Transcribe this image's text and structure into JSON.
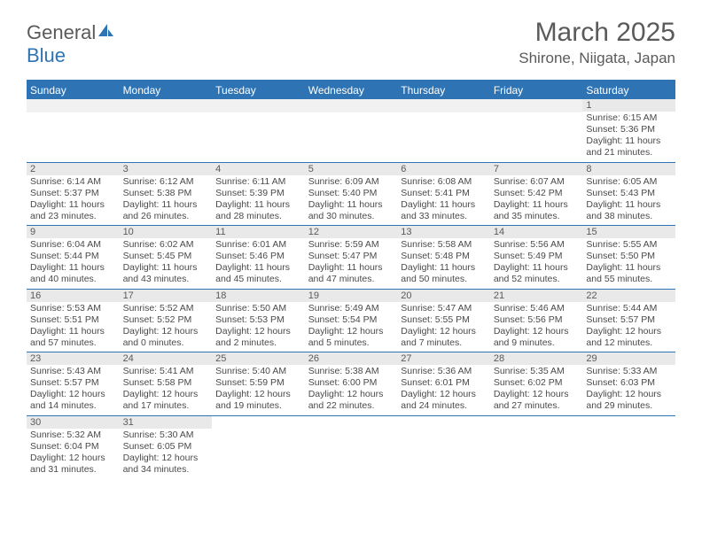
{
  "logo": {
    "general": "General",
    "blue": "Blue"
  },
  "title": "March 2025",
  "location": "Shirone, Niigata, Japan",
  "dayNames": [
    "Sunday",
    "Monday",
    "Tuesday",
    "Wednesday",
    "Thursday",
    "Friday",
    "Saturday"
  ],
  "colors": {
    "accent": "#2e74b5",
    "headerText": "#ffffff",
    "dayNumBg": "#e9e9e9",
    "textGray": "#5a5a5a",
    "bodyText": "#4a4a4a",
    "emptyBg": "#f1f1f1"
  },
  "weeks": [
    [
      {
        "empty": true
      },
      {
        "empty": true
      },
      {
        "empty": true
      },
      {
        "empty": true
      },
      {
        "empty": true
      },
      {
        "empty": true
      },
      {
        "num": "1",
        "sunrise": "Sunrise: 6:15 AM",
        "sunset": "Sunset: 5:36 PM",
        "daylight": "Daylight: 11 hours and 21 minutes."
      }
    ],
    [
      {
        "num": "2",
        "sunrise": "Sunrise: 6:14 AM",
        "sunset": "Sunset: 5:37 PM",
        "daylight": "Daylight: 11 hours and 23 minutes."
      },
      {
        "num": "3",
        "sunrise": "Sunrise: 6:12 AM",
        "sunset": "Sunset: 5:38 PM",
        "daylight": "Daylight: 11 hours and 26 minutes."
      },
      {
        "num": "4",
        "sunrise": "Sunrise: 6:11 AM",
        "sunset": "Sunset: 5:39 PM",
        "daylight": "Daylight: 11 hours and 28 minutes."
      },
      {
        "num": "5",
        "sunrise": "Sunrise: 6:09 AM",
        "sunset": "Sunset: 5:40 PM",
        "daylight": "Daylight: 11 hours and 30 minutes."
      },
      {
        "num": "6",
        "sunrise": "Sunrise: 6:08 AM",
        "sunset": "Sunset: 5:41 PM",
        "daylight": "Daylight: 11 hours and 33 minutes."
      },
      {
        "num": "7",
        "sunrise": "Sunrise: 6:07 AM",
        "sunset": "Sunset: 5:42 PM",
        "daylight": "Daylight: 11 hours and 35 minutes."
      },
      {
        "num": "8",
        "sunrise": "Sunrise: 6:05 AM",
        "sunset": "Sunset: 5:43 PM",
        "daylight": "Daylight: 11 hours and 38 minutes."
      }
    ],
    [
      {
        "num": "9",
        "sunrise": "Sunrise: 6:04 AM",
        "sunset": "Sunset: 5:44 PM",
        "daylight": "Daylight: 11 hours and 40 minutes."
      },
      {
        "num": "10",
        "sunrise": "Sunrise: 6:02 AM",
        "sunset": "Sunset: 5:45 PM",
        "daylight": "Daylight: 11 hours and 43 minutes."
      },
      {
        "num": "11",
        "sunrise": "Sunrise: 6:01 AM",
        "sunset": "Sunset: 5:46 PM",
        "daylight": "Daylight: 11 hours and 45 minutes."
      },
      {
        "num": "12",
        "sunrise": "Sunrise: 5:59 AM",
        "sunset": "Sunset: 5:47 PM",
        "daylight": "Daylight: 11 hours and 47 minutes."
      },
      {
        "num": "13",
        "sunrise": "Sunrise: 5:58 AM",
        "sunset": "Sunset: 5:48 PM",
        "daylight": "Daylight: 11 hours and 50 minutes."
      },
      {
        "num": "14",
        "sunrise": "Sunrise: 5:56 AM",
        "sunset": "Sunset: 5:49 PM",
        "daylight": "Daylight: 11 hours and 52 minutes."
      },
      {
        "num": "15",
        "sunrise": "Sunrise: 5:55 AM",
        "sunset": "Sunset: 5:50 PM",
        "daylight": "Daylight: 11 hours and 55 minutes."
      }
    ],
    [
      {
        "num": "16",
        "sunrise": "Sunrise: 5:53 AM",
        "sunset": "Sunset: 5:51 PM",
        "daylight": "Daylight: 11 hours and 57 minutes."
      },
      {
        "num": "17",
        "sunrise": "Sunrise: 5:52 AM",
        "sunset": "Sunset: 5:52 PM",
        "daylight": "Daylight: 12 hours and 0 minutes."
      },
      {
        "num": "18",
        "sunrise": "Sunrise: 5:50 AM",
        "sunset": "Sunset: 5:53 PM",
        "daylight": "Daylight: 12 hours and 2 minutes."
      },
      {
        "num": "19",
        "sunrise": "Sunrise: 5:49 AM",
        "sunset": "Sunset: 5:54 PM",
        "daylight": "Daylight: 12 hours and 5 minutes."
      },
      {
        "num": "20",
        "sunrise": "Sunrise: 5:47 AM",
        "sunset": "Sunset: 5:55 PM",
        "daylight": "Daylight: 12 hours and 7 minutes."
      },
      {
        "num": "21",
        "sunrise": "Sunrise: 5:46 AM",
        "sunset": "Sunset: 5:56 PM",
        "daylight": "Daylight: 12 hours and 9 minutes."
      },
      {
        "num": "22",
        "sunrise": "Sunrise: 5:44 AM",
        "sunset": "Sunset: 5:57 PM",
        "daylight": "Daylight: 12 hours and 12 minutes."
      }
    ],
    [
      {
        "num": "23",
        "sunrise": "Sunrise: 5:43 AM",
        "sunset": "Sunset: 5:57 PM",
        "daylight": "Daylight: 12 hours and 14 minutes."
      },
      {
        "num": "24",
        "sunrise": "Sunrise: 5:41 AM",
        "sunset": "Sunset: 5:58 PM",
        "daylight": "Daylight: 12 hours and 17 minutes."
      },
      {
        "num": "25",
        "sunrise": "Sunrise: 5:40 AM",
        "sunset": "Sunset: 5:59 PM",
        "daylight": "Daylight: 12 hours and 19 minutes."
      },
      {
        "num": "26",
        "sunrise": "Sunrise: 5:38 AM",
        "sunset": "Sunset: 6:00 PM",
        "daylight": "Daylight: 12 hours and 22 minutes."
      },
      {
        "num": "27",
        "sunrise": "Sunrise: 5:36 AM",
        "sunset": "Sunset: 6:01 PM",
        "daylight": "Daylight: 12 hours and 24 minutes."
      },
      {
        "num": "28",
        "sunrise": "Sunrise: 5:35 AM",
        "sunset": "Sunset: 6:02 PM",
        "daylight": "Daylight: 12 hours and 27 minutes."
      },
      {
        "num": "29",
        "sunrise": "Sunrise: 5:33 AM",
        "sunset": "Sunset: 6:03 PM",
        "daylight": "Daylight: 12 hours and 29 minutes."
      }
    ],
    [
      {
        "num": "30",
        "sunrise": "Sunrise: 5:32 AM",
        "sunset": "Sunset: 6:04 PM",
        "daylight": "Daylight: 12 hours and 31 minutes."
      },
      {
        "num": "31",
        "sunrise": "Sunrise: 5:30 AM",
        "sunset": "Sunset: 6:05 PM",
        "daylight": "Daylight: 12 hours and 34 minutes."
      },
      {
        "empty": true
      },
      {
        "empty": true
      },
      {
        "empty": true
      },
      {
        "empty": true
      },
      {
        "empty": true
      }
    ]
  ]
}
